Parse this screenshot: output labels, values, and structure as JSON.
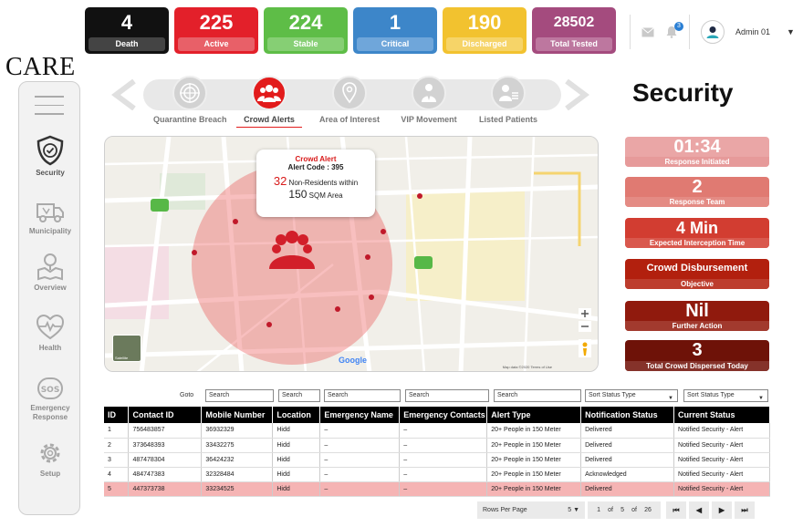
{
  "logo": "CARE",
  "stats": [
    {
      "value": "4",
      "label": "Death",
      "color": "#111111",
      "label_color": "#444444"
    },
    {
      "value": "225",
      "label": "Active",
      "color": "#e3202a",
      "label_color": "#e86068"
    },
    {
      "value": "224",
      "label": "Stable",
      "color": "#5ebd47",
      "label_color": "#86cf74"
    },
    {
      "value": "1",
      "label": "Critical",
      "color": "#3d86c9",
      "label_color": "#6fa6da"
    },
    {
      "value": "190",
      "label": "Discharged",
      "color": "#f2c22f",
      "label_color": "#f6d468"
    },
    {
      "value": "28502",
      "label": "Total Tested",
      "color": "#a44b7e",
      "label_color": "#bd779f"
    }
  ],
  "header": {
    "notification_count": "3",
    "user_name": "Admin 01"
  },
  "sidebar": {
    "items": [
      {
        "label": "Security",
        "icon": "shield-icon"
      },
      {
        "label": "Municipality",
        "icon": "truck-icon"
      },
      {
        "label": "Overview",
        "icon": "map-icon"
      },
      {
        "label": "Health",
        "icon": "heart-pulse-icon"
      },
      {
        "label": "Emergency Response",
        "icon": "sos-icon"
      },
      {
        "label": "Setup",
        "icon": "gear-icon"
      }
    ]
  },
  "carousel": {
    "items": [
      {
        "label": "Quarantine Breach",
        "icon": "radar-icon"
      },
      {
        "label": "Crowd Alerts",
        "icon": "crowd-icon"
      },
      {
        "label": "Area of Interest",
        "icon": "location-icon"
      },
      {
        "label": "VIP Movement",
        "icon": "vip-icon"
      },
      {
        "label": "Listed  Patients",
        "icon": "patient-list-icon"
      }
    ]
  },
  "page_title": "Security",
  "map": {
    "popup": {
      "title": "Crowd Alert",
      "code": "Alert Code : 395",
      "count": "32",
      "count_text": "Non-Residents within",
      "area_value": "150",
      "area_text": "SQM Area"
    },
    "logo_text": "Google",
    "credits": "Map data ©2020   Terms of Use",
    "thumbnail_label": "Satellite"
  },
  "metrics": [
    {
      "value": "01:34",
      "label": "Response Initiated",
      "color": "#eaa6a6",
      "label_color": "#e69a9a"
    },
    {
      "value": "2",
      "label": "Response Team",
      "color": "#e07a72",
      "label_color": "#e48b84"
    },
    {
      "value": "4 Min",
      "label": "Expected Interception Time",
      "color": "#d23d31",
      "label_color": "#d9584d"
    },
    {
      "value": "Crowd Disbursement",
      "label": "Objective",
      "color": "#b2200e",
      "label_color": "#bd3d2d"
    },
    {
      "value": "Nil",
      "label": "Further Action",
      "color": "#901a0d",
      "label_color": "#a23a2e"
    },
    {
      "value": "3",
      "label": "Total Crowd Dispersed Today",
      "color": "#6e1208",
      "label_color": "#85322a"
    }
  ],
  "filters": {
    "goto": "Goto",
    "search": "Search",
    "sort": "Sort Status Type"
  },
  "table": {
    "headers": [
      "ID",
      "Contact ID",
      "Mobile Number",
      "Location",
      "Emergency  Name",
      "Emergency Contacts",
      "Alert Type",
      "Notification Status",
      "Current Status"
    ],
    "rows": [
      [
        "1",
        "756483857",
        "36932329",
        "Hidd",
        "–",
        "–",
        "20+ People in 150 Meter",
        "Delivered",
        "Notified Security - Alert"
      ],
      [
        "2",
        "373648393",
        "33432275",
        "Hidd",
        "–",
        "–",
        "20+ People in 150 Meter",
        "Delivered",
        "Notified Security - Alert"
      ],
      [
        "3",
        "487478304",
        "36424232",
        "Hidd",
        "–",
        "–",
        "20+ People in 150 Meter",
        "Delivered",
        "Notified Security - Alert"
      ],
      [
        "4",
        "484747383",
        "32328484",
        "Hidd",
        "–",
        "–",
        "20+ People in 150 Meter",
        "Acknowledged",
        "Notified Security - Alert"
      ],
      [
        "5",
        "447373738",
        "33234525",
        "Hidd",
        "–",
        "–",
        "20+ People in 150 Meter",
        "Delivered",
        "Notified Security - Alert"
      ]
    ]
  },
  "pagination": {
    "rows_per_page_label": "Rows Per Page",
    "rows_per_page": "5",
    "from": "1",
    "of_label": "of",
    "to": "5",
    "total": "26"
  }
}
